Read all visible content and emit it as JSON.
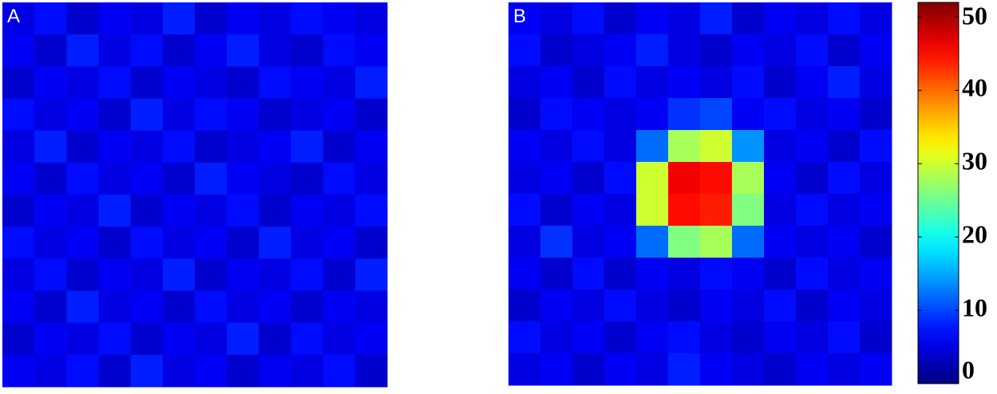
{
  "chart_data": [
    {
      "type": "heatmap",
      "title": "A",
      "colormap": "jet",
      "clim": [
        0,
        52
      ],
      "values": [
        [
          5,
          7,
          4,
          6,
          5,
          8,
          4,
          6,
          5,
          7,
          6,
          5
        ],
        [
          6,
          4,
          8,
          5,
          7,
          4,
          6,
          8,
          5,
          4,
          7,
          6
        ],
        [
          4,
          6,
          5,
          7,
          4,
          6,
          5,
          4,
          7,
          6,
          5,
          8
        ],
        [
          7,
          5,
          6,
          4,
          8,
          5,
          7,
          6,
          4,
          5,
          6,
          4
        ],
        [
          5,
          8,
          4,
          6,
          5,
          7,
          4,
          5,
          6,
          8,
          4,
          6
        ],
        [
          6,
          4,
          7,
          5,
          6,
          4,
          8,
          6,
          5,
          4,
          7,
          5
        ],
        [
          4,
          6,
          5,
          8,
          4,
          6,
          5,
          7,
          4,
          6,
          5,
          7
        ],
        [
          7,
          5,
          6,
          4,
          7,
          5,
          6,
          4,
          8,
          5,
          6,
          4
        ],
        [
          5,
          7,
          4,
          6,
          5,
          8,
          4,
          6,
          5,
          7,
          4,
          8
        ],
        [
          6,
          4,
          8,
          5,
          6,
          4,
          7,
          5,
          6,
          4,
          6,
          5
        ],
        [
          4,
          6,
          5,
          7,
          4,
          6,
          5,
          8,
          4,
          7,
          5,
          6
        ],
        [
          6,
          5,
          7,
          4,
          8,
          5,
          6,
          4,
          6,
          5,
          7,
          4
        ]
      ]
    },
    {
      "type": "heatmap",
      "title": "B",
      "colormap": "jet",
      "clim": [
        0,
        52
      ],
      "values": [
        [
          6,
          5,
          7,
          4,
          6,
          5,
          8,
          4,
          6,
          5,
          7,
          5
        ],
        [
          7,
          4,
          5,
          6,
          8,
          5,
          4,
          6,
          5,
          7,
          4,
          6
        ],
        [
          5,
          6,
          4,
          7,
          5,
          6,
          5,
          7,
          4,
          6,
          8,
          5
        ],
        [
          4,
          7,
          6,
          5,
          6,
          9,
          10,
          6,
          7,
          5,
          6,
          4
        ],
        [
          6,
          5,
          7,
          5,
          12,
          28,
          30,
          14,
          5,
          6,
          4,
          7
        ],
        [
          5,
          6,
          4,
          7,
          30,
          46,
          45,
          28,
          6,
          4,
          7,
          5
        ],
        [
          7,
          4,
          6,
          5,
          30,
          45,
          44,
          26,
          5,
          7,
          5,
          6
        ],
        [
          5,
          9,
          5,
          6,
          12,
          26,
          28,
          12,
          6,
          5,
          6,
          4
        ],
        [
          6,
          4,
          7,
          4,
          6,
          5,
          7,
          6,
          4,
          7,
          5,
          6
        ],
        [
          4,
          6,
          5,
          7,
          5,
          4,
          6,
          5,
          7,
          4,
          6,
          5
        ],
        [
          7,
          5,
          6,
          4,
          6,
          7,
          5,
          4,
          6,
          5,
          7,
          4
        ],
        [
          5,
          6,
          4,
          6,
          5,
          8,
          6,
          5,
          4,
          6,
          5,
          6
        ]
      ]
    },
    {
      "type": "colorbar",
      "colormap": "jet",
      "ylim": [
        0,
        52
      ],
      "yticks": [
        0,
        10,
        20,
        30,
        40,
        50
      ]
    }
  ]
}
